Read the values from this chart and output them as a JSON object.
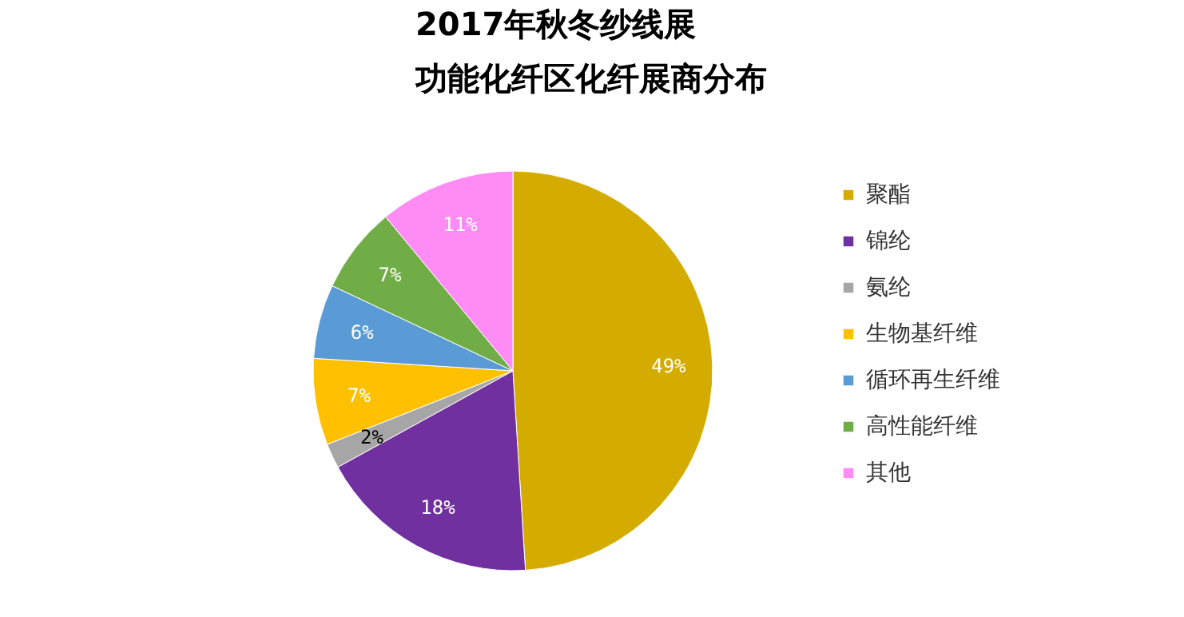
{
  "chart_data": {
    "type": "pie",
    "title": "2017年秋冬纱线展",
    "subtitle": "功能化纤区化纤展商分布",
    "categories": [
      "聚酯",
      "锦纶",
      "氨纶",
      "生物基纤维",
      "循环再生纤维",
      "高性能纤维",
      "其他"
    ],
    "values": [
      49,
      18,
      2,
      7,
      6,
      7,
      11
    ],
    "colors": [
      "#d4ac00",
      "#7030a0",
      "#a6a6a6",
      "#ffc000",
      "#5b9bd5",
      "#70ad47",
      "#ff8cf5"
    ],
    "value_labels": [
      "49%",
      "18%",
      "2%",
      "7%",
      "6%",
      "7%",
      "11%"
    ],
    "legend": "right"
  }
}
